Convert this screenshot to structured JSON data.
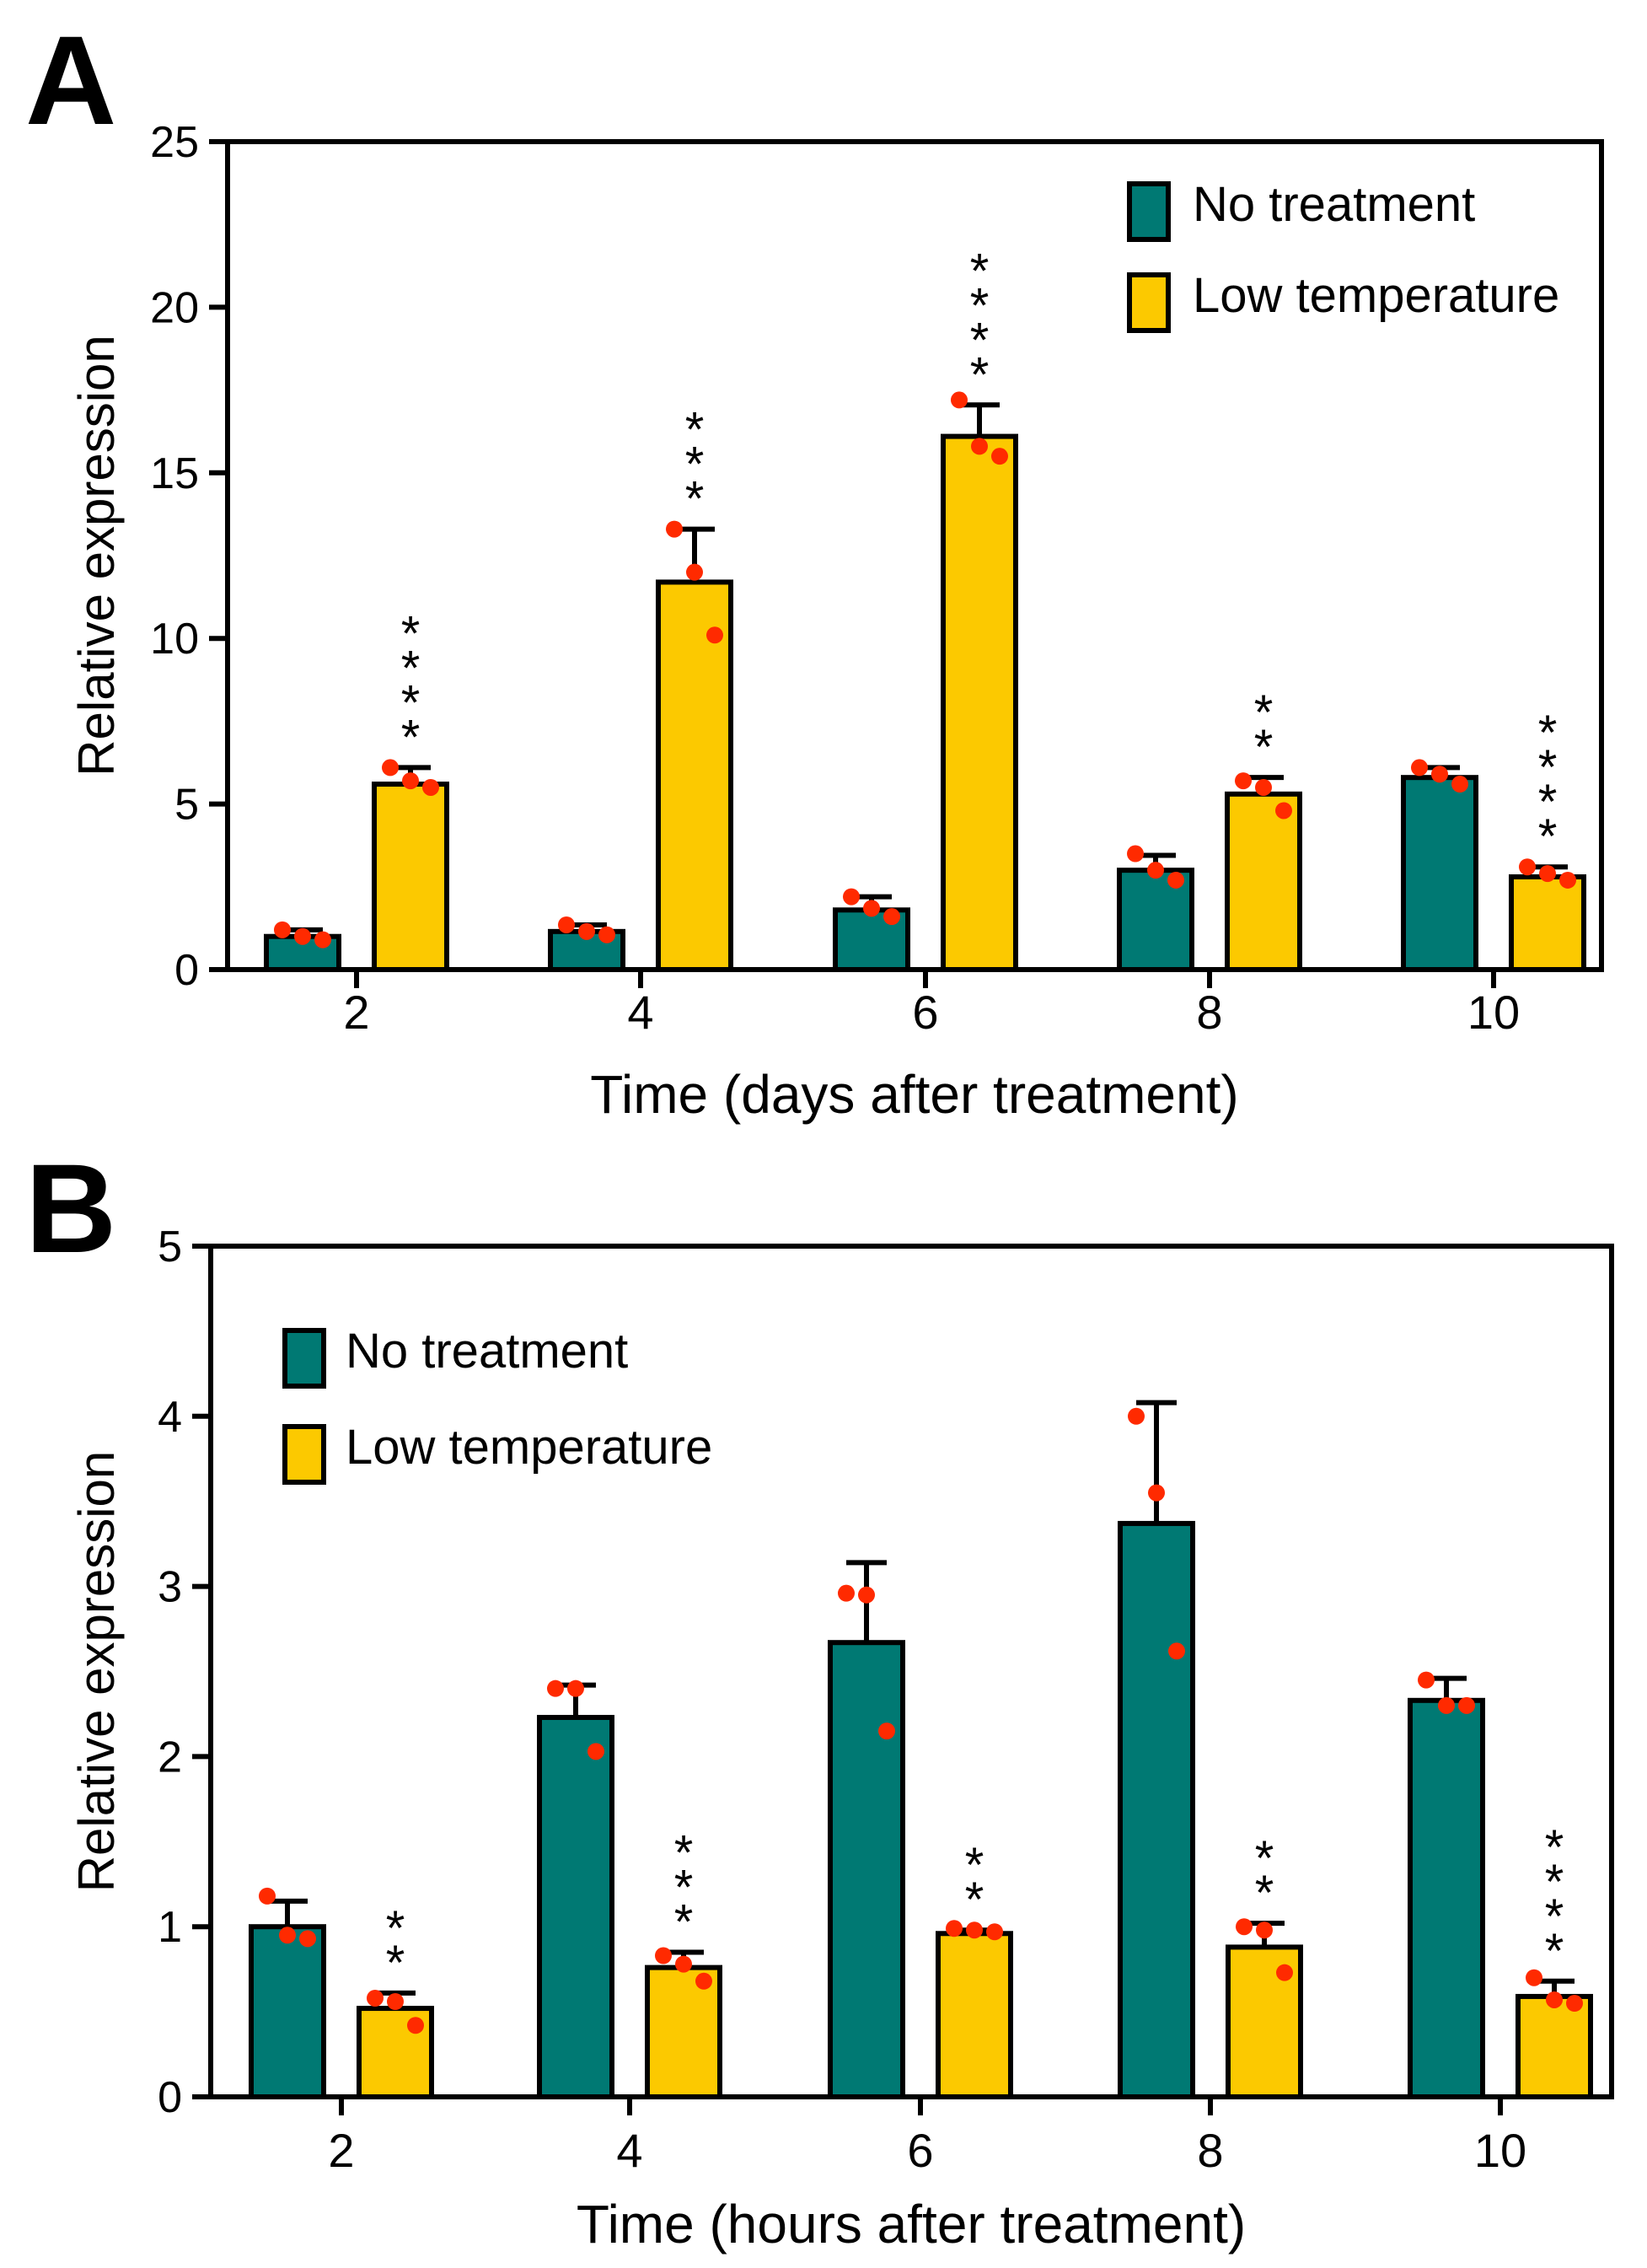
{
  "colors": {
    "no_treatment": "#007973",
    "low_temperature": "#fcc900",
    "points": "#ff2a00",
    "axis": "#000000"
  },
  "chart_data": [
    {
      "panel": "A",
      "type": "bar",
      "xlabel": "Time (days after treatment)",
      "ylabel": "Relative expression",
      "ylim": [
        0,
        25
      ],
      "yticks": [
        0,
        5,
        10,
        15,
        20,
        25
      ],
      "categories": [
        "2",
        "4",
        "6",
        "8",
        "10"
      ],
      "legend_position": "top-right",
      "series": [
        {
          "name": "No treatment",
          "values": [
            1.0,
            1.15,
            1.8,
            3.0,
            5.8
          ],
          "errors": [
            0.2,
            0.2,
            0.4,
            0.45,
            0.3
          ],
          "points": [
            [
              1.2,
              1.0,
              0.9
            ],
            [
              1.35,
              1.15,
              1.05
            ],
            [
              2.2,
              1.85,
              1.6
            ],
            [
              3.5,
              3.0,
              2.7
            ],
            [
              6.1,
              5.9,
              5.6
            ]
          ],
          "significance": [
            "",
            "",
            "",
            "",
            ""
          ]
        },
        {
          "name": "Low temperature",
          "values": [
            5.6,
            11.7,
            16.1,
            5.3,
            2.8
          ],
          "errors": [
            0.5,
            1.6,
            0.95,
            0.5,
            0.3
          ],
          "points": [
            [
              6.1,
              5.7,
              5.5
            ],
            [
              13.3,
              12.0,
              10.1
            ],
            [
              17.2,
              15.8,
              15.5
            ],
            [
              5.7,
              5.5,
              4.8
            ],
            [
              3.1,
              2.9,
              2.7
            ]
          ],
          "significance": [
            "****",
            "***",
            "****",
            "**",
            "****"
          ]
        }
      ]
    },
    {
      "panel": "B",
      "type": "bar",
      "xlabel": "Time (hours after treatment)",
      "ylabel": "Relative expression",
      "ylim": [
        0,
        5
      ],
      "yticks": [
        0,
        1,
        2,
        3,
        4,
        5
      ],
      "categories": [
        "2",
        "4",
        "6",
        "8",
        "10"
      ],
      "legend_position": "top-left",
      "series": [
        {
          "name": "No treatment",
          "values": [
            1.0,
            2.23,
            2.67,
            3.37,
            2.33
          ],
          "errors": [
            0.15,
            0.19,
            0.47,
            0.71,
            0.13
          ],
          "points": [
            [
              1.18,
              0.95,
              0.93
            ],
            [
              2.4,
              2.4,
              2.03
            ],
            [
              2.96,
              2.95,
              2.15
            ],
            [
              4.0,
              3.55,
              2.62
            ],
            [
              2.45,
              2.3,
              2.3
            ]
          ],
          "significance": [
            "",
            "",
            "",
            "",
            ""
          ]
        },
        {
          "name": "Low temperature",
          "values": [
            0.52,
            0.76,
            0.96,
            0.88,
            0.59
          ],
          "errors": [
            0.09,
            0.09,
            0.02,
            0.14,
            0.09
          ],
          "points": [
            [
              0.58,
              0.56,
              0.42
            ],
            [
              0.83,
              0.78,
              0.68
            ],
            [
              0.99,
              0.98,
              0.97
            ],
            [
              1.0,
              0.98,
              0.73
            ],
            [
              0.7,
              0.57,
              0.55
            ]
          ],
          "significance": [
            "**",
            "***",
            "**",
            "**",
            "****"
          ]
        }
      ]
    }
  ]
}
